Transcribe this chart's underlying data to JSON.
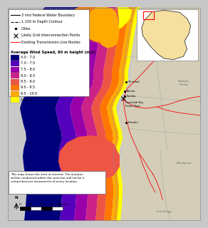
{
  "bg_color": "#c8c8c8",
  "ocean_color": "#b8d0e8",
  "land_color": "#d4cdb8",
  "title": "Average Wind Speed, 90 m height (m/s)",
  "legend_items": [
    {
      "label": "4.0 - 7.0",
      "color": "#00007B"
    },
    {
      "label": "7.0 - 7.5",
      "color": "#5500BB"
    },
    {
      "label": "7.5 - 8.0",
      "color": "#9900AA"
    },
    {
      "label": "8.0 - 8.5",
      "color": "#CC2288"
    },
    {
      "label": "8.5 - 9.0",
      "color": "#EE5544"
    },
    {
      "label": "9.0 - 9.5",
      "color": "#FF7700"
    },
    {
      "label": "9.5 - 10.0",
      "color": "#FFAA00"
    },
    {
      "label": "10.0 +",
      "color": "#FFFF00"
    }
  ],
  "legend_line_items": [
    {
      "label": "3 nmi Federal Water Boundary",
      "style": "solid",
      "color": "#000000"
    },
    {
      "label": "1,100 m Depth Contour",
      "style": "dashed",
      "color": "#000000"
    },
    {
      "label": "Cities",
      "style": "dot",
      "color": "#000000"
    },
    {
      "label": "Likely Grid Interconnection Points",
      "style": "x",
      "color": "#000000"
    },
    {
      "label": "Existing Transmission Line Routes",
      "style": "solid",
      "color": "#EE2222"
    }
  ],
  "note_text": "This map shows the area of interest. The analysis\nwill be conducted within this area but will not be a\ncomprehensive assessment of every location."
}
